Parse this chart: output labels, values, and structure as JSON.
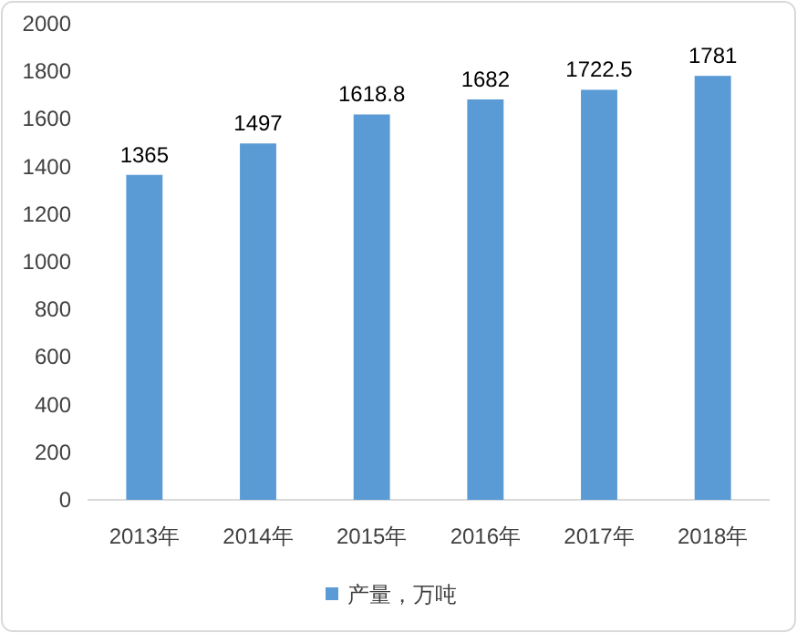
{
  "chart_data": {
    "type": "bar",
    "categories": [
      "2013年",
      "2014年",
      "2015年",
      "2016年",
      "2017年",
      "2018年"
    ],
    "series": [
      {
        "name": "产量，万吨",
        "color": "#5b9bd5",
        "values": [
          1365,
          1497,
          1618.8,
          1682,
          1722.5,
          1781
        ]
      }
    ],
    "ylim": [
      0,
      2000
    ],
    "yticks": [
      0,
      200,
      400,
      600,
      800,
      1000,
      1200,
      1400,
      1600,
      1800,
      2000
    ],
    "data_labels": true,
    "grid": false,
    "legend": "bottom"
  }
}
